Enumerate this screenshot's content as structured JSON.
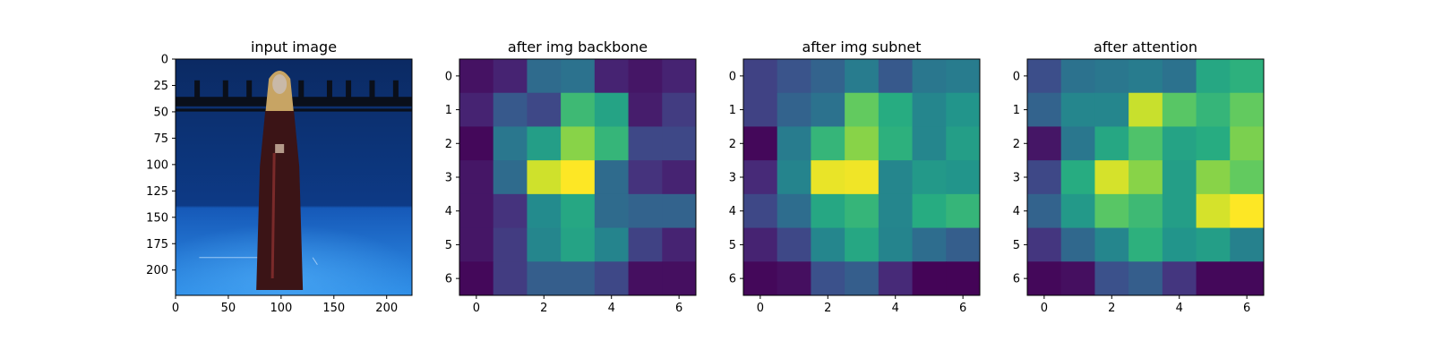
{
  "chart_data": [
    {
      "type": "image",
      "title": "input image",
      "xlim": [
        0,
        224
      ],
      "ylim": [
        224,
        0
      ],
      "xticks": [
        0,
        50,
        100,
        150,
        200
      ],
      "yticks": [
        0,
        25,
        50,
        75,
        100,
        125,
        150,
        175,
        200
      ],
      "colors": {
        "backdrop_top": "#0b2a63",
        "backdrop_mid": "#0d3a86",
        "floor_near": "#2f8fe8",
        "floor_far": "#1659b8",
        "rig": "#0a0f1a",
        "dress": "#3b1416",
        "hair": "#c7a464",
        "face": "#c9b9a8"
      }
    },
    {
      "type": "heatmap",
      "title": "after img backbone",
      "colormap": "viridis",
      "xticks": [
        0,
        2,
        4,
        6
      ],
      "yticks": [
        0,
        1,
        2,
        3,
        4,
        5,
        6
      ],
      "values": [
        [
          0.05,
          0.1,
          0.35,
          0.38,
          0.1,
          0.06,
          0.1
        ],
        [
          0.1,
          0.28,
          0.22,
          0.68,
          0.58,
          0.08,
          0.18
        ],
        [
          0.02,
          0.4,
          0.56,
          0.82,
          0.66,
          0.22,
          0.22
        ],
        [
          0.06,
          0.35,
          0.93,
          1.0,
          0.35,
          0.15,
          0.1
        ],
        [
          0.06,
          0.15,
          0.48,
          0.6,
          0.35,
          0.32,
          0.32
        ],
        [
          0.06,
          0.18,
          0.46,
          0.58,
          0.45,
          0.2,
          0.1
        ],
        [
          0.02,
          0.18,
          0.3,
          0.3,
          0.22,
          0.04,
          0.04
        ]
      ]
    },
    {
      "type": "heatmap",
      "title": "after img subnet",
      "colormap": "viridis",
      "xticks": [
        0,
        2,
        4,
        6
      ],
      "yticks": [
        0,
        1,
        2,
        3,
        4,
        5,
        6
      ],
      "values": [
        [
          0.2,
          0.26,
          0.32,
          0.42,
          0.28,
          0.4,
          0.42
        ],
        [
          0.2,
          0.32,
          0.38,
          0.76,
          0.62,
          0.46,
          0.52
        ],
        [
          0.02,
          0.42,
          0.66,
          0.82,
          0.64,
          0.46,
          0.56
        ],
        [
          0.12,
          0.45,
          0.97,
          0.98,
          0.46,
          0.54,
          0.52
        ],
        [
          0.22,
          0.36,
          0.6,
          0.66,
          0.46,
          0.62,
          0.66
        ],
        [
          0.1,
          0.22,
          0.46,
          0.6,
          0.45,
          0.36,
          0.3
        ],
        [
          0.02,
          0.04,
          0.25,
          0.3,
          0.12,
          0.01,
          0.01
        ]
      ]
    },
    {
      "type": "heatmap",
      "title": "after attention",
      "colormap": "viridis",
      "xticks": [
        0,
        2,
        4,
        6
      ],
      "yticks": [
        0,
        1,
        2,
        3,
        4,
        5,
        6
      ],
      "values": [
        [
          0.24,
          0.38,
          0.4,
          0.42,
          0.38,
          0.6,
          0.64
        ],
        [
          0.32,
          0.46,
          0.46,
          0.92,
          0.74,
          0.66,
          0.76
        ],
        [
          0.06,
          0.4,
          0.6,
          0.72,
          0.58,
          0.62,
          0.8
        ],
        [
          0.22,
          0.62,
          0.94,
          0.82,
          0.56,
          0.82,
          0.76
        ],
        [
          0.32,
          0.54,
          0.74,
          0.68,
          0.56,
          0.94,
          1.0
        ],
        [
          0.16,
          0.34,
          0.46,
          0.64,
          0.52,
          0.56,
          0.44
        ],
        [
          0.02,
          0.04,
          0.25,
          0.3,
          0.16,
          0.02,
          0.02
        ]
      ]
    }
  ]
}
